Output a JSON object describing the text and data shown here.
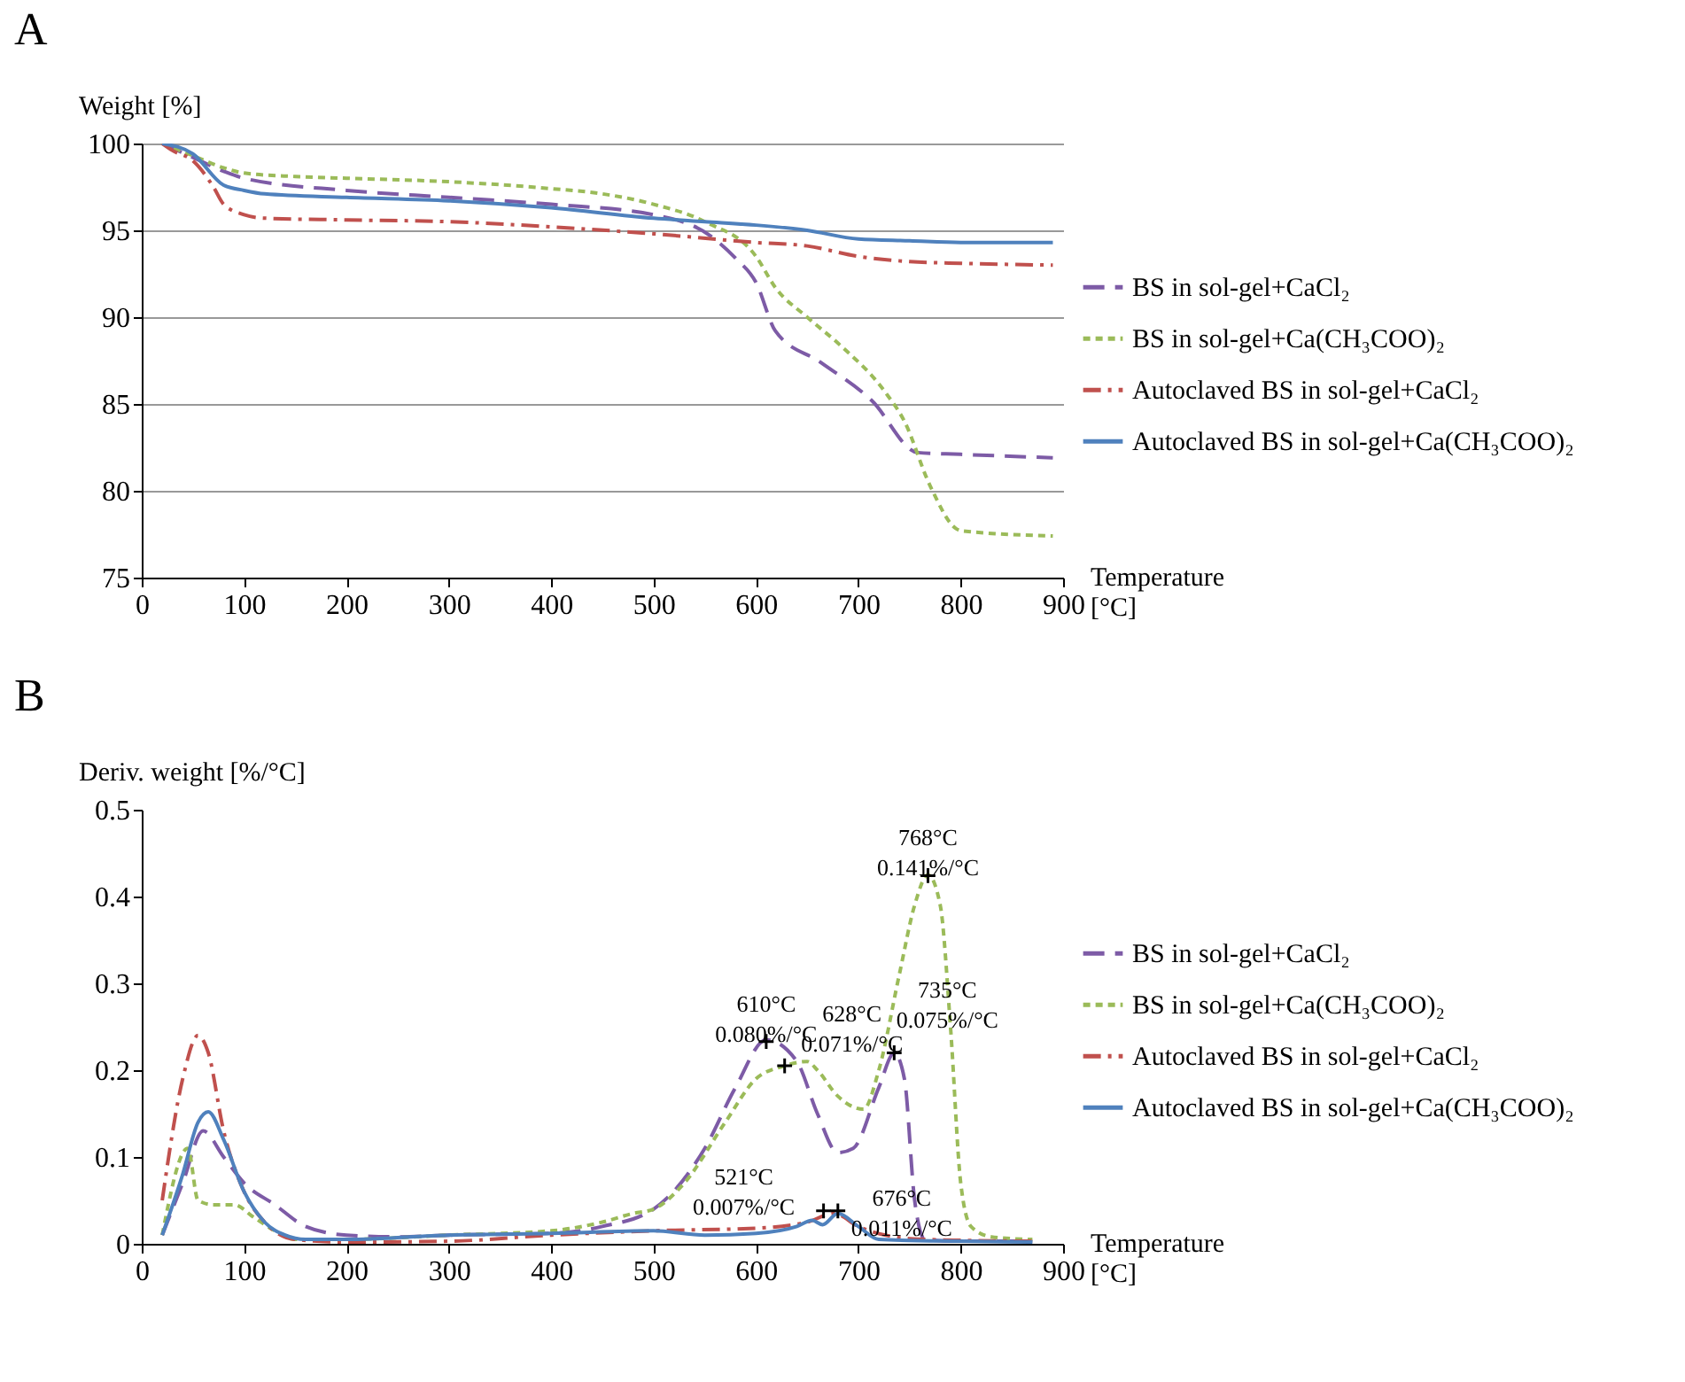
{
  "chart_data": [
    {
      "type": "line",
      "title": "A",
      "ylabel": "Weight [%]",
      "xlabel": "Temperature [°C]",
      "xlim": [
        0,
        900
      ],
      "xticks": [
        0,
        100,
        200,
        300,
        400,
        500,
        600,
        700,
        800,
        900
      ],
      "ylim": [
        75,
        100
      ],
      "yticks": [
        75,
        80,
        85,
        90,
        95,
        100
      ],
      "grid": "y",
      "legend": "right",
      "series": [
        {
          "name": "BS in sol-gel+CaCl₂",
          "color": "#7d5ba6",
          "line_style": "dashed",
          "x": [
            20,
            50,
            80,
            100,
            200,
            300,
            400,
            500,
            555,
            580,
            600,
            619,
            663,
            713,
            758,
            800,
            890
          ],
          "values": [
            100,
            99.2,
            98.4,
            98,
            97.3,
            96.9,
            96.5,
            95.9,
            94.7,
            93.4,
            92.0,
            89.2,
            87.4,
            85.2,
            82.2,
            82.1,
            81.9
          ]
        },
        {
          "name": "BS in sol-gel+Ca(CH₃COO)₂",
          "color": "#9bbb59",
          "line_style": "dotted",
          "x": [
            20,
            50,
            80,
            100,
            150,
            200,
            300,
            400,
            450,
            500,
            550,
            600,
            619,
            650,
            682,
            726,
            745,
            770,
            796,
            800,
            890
          ],
          "values": [
            100,
            99.3,
            98.6,
            98.3,
            98.1,
            98.0,
            97.8,
            97.4,
            97.1,
            96.5,
            95.5,
            93.5,
            91.7,
            90.0,
            88.4,
            85.7,
            84.0,
            80.3,
            77.8,
            77.7,
            77.4
          ]
        },
        {
          "name": "Autoclaved BS in sol-gel+CaCl₂",
          "color": "#c0504d",
          "line_style": "dashdot",
          "x": [
            20,
            30,
            50,
            70,
            80,
            100,
            120,
            200,
            300,
            400,
            500,
            600,
            650,
            700,
            750,
            800,
            890
          ],
          "values": [
            100,
            99.6,
            99,
            97.5,
            96.5,
            95.9,
            95.7,
            95.6,
            95.5,
            95.2,
            94.8,
            94.3,
            94.1,
            93.5,
            93.2,
            93.1,
            93.0
          ]
        },
        {
          "name": "Autoclaved BS in sol-gel+Ca(CH₃COO)₂",
          "color": "#4f81bd",
          "line_style": "solid",
          "x": [
            20,
            50,
            80,
            100,
            120,
            200,
            300,
            400,
            500,
            550,
            600,
            650,
            700,
            750,
            800,
            890
          ],
          "values": [
            100,
            99.4,
            97.6,
            97.3,
            97.1,
            96.9,
            96.7,
            96.3,
            95.7,
            95.5,
            95.3,
            95.0,
            94.5,
            94.4,
            94.3,
            94.3
          ]
        }
      ]
    },
    {
      "type": "line",
      "title": "B",
      "ylabel": "Deriv. weight [%/°C]",
      "xlabel": "Temperature [°C]",
      "xlim": [
        0,
        900
      ],
      "xticks": [
        0,
        100,
        200,
        300,
        400,
        500,
        600,
        700,
        800,
        900
      ],
      "ylim": [
        0,
        0.5
      ],
      "yticks": [
        0,
        0.1,
        0.2,
        0.3,
        0.4,
        0.5
      ],
      "legend": "right",
      "annotations": [
        {
          "text": "610°C\n0.080%/°C",
          "x": 610,
          "y": 0.233
        },
        {
          "text": "628°C\n0.071%/°C",
          "x": 628,
          "y": 0.205
        },
        {
          "text": "735°C\n0.075%/°C",
          "x": 735,
          "y": 0.22
        },
        {
          "text": "768°C\n0.141%/°C",
          "x": 768,
          "y": 0.424
        },
        {
          "text": "521°C\n0.007%/°C",
          "x": 666,
          "y": 0.038
        },
        {
          "text": "676°C\n0.011%/°C",
          "x": 680,
          "y": 0.038
        }
      ],
      "series": [
        {
          "type": "scatter",
          "marker": "cross",
          "color": "#000000",
          "x": [
            610,
            628,
            735,
            768,
            666,
            680
          ],
          "values": [
            0.233,
            0.205,
            0.22,
            0.424,
            0.038,
            0.038
          ]
        },
        {
          "name": "BS in sol-gel+CaCl₂",
          "color": "#7d5ba6",
          "line_style": "dashed",
          "x": [
            20,
            40,
            60,
            80,
            100,
            130,
            160,
            200,
            250,
            300,
            400,
            450,
            500,
            550,
            580,
            610,
            640,
            660,
            680,
            695,
            720,
            735,
            745,
            755,
            765,
            800,
            870
          ],
          "values": [
            0.01,
            0.07,
            0.13,
            0.1,
            0.07,
            0.045,
            0.02,
            0.01,
            0.008,
            0.01,
            0.012,
            0.02,
            0.04,
            0.11,
            0.18,
            0.235,
            0.21,
            0.15,
            0.105,
            0.11,
            0.18,
            0.22,
            0.19,
            0.05,
            0.005,
            0.003,
            0.003
          ]
        },
        {
          "name": "BS in sol-gel+Ca(CH₃COO)₂",
          "color": "#9bbb59",
          "line_style": "dotted",
          "x": [
            20,
            45,
            55,
            70,
            90,
            110,
            130,
            150,
            200,
            300,
            400,
            450,
            480,
            500,
            530,
            570,
            600,
            628,
            650,
            660,
            680,
            705,
            720,
            740,
            755,
            768,
            780,
            790,
            800,
            810,
            830,
            870
          ],
          "values": [
            0.01,
            0.11,
            0.05,
            0.045,
            0.045,
            0.03,
            0.015,
            0.005,
            0.005,
            0.01,
            0.015,
            0.025,
            0.035,
            0.04,
            0.07,
            0.14,
            0.19,
            0.205,
            0.21,
            0.2,
            0.17,
            0.155,
            0.2,
            0.31,
            0.39,
            0.425,
            0.39,
            0.25,
            0.07,
            0.02,
            0.008,
            0.005
          ]
        },
        {
          "name": "Autoclaved BS in sol-gel+CaCl₂",
          "color": "#c0504d",
          "line_style": "dashdot",
          "x": [
            20,
            40,
            55,
            65,
            80,
            100,
            120,
            150,
            200,
            300,
            400,
            500,
            600,
            650,
            676,
            700,
            750,
            800,
            870
          ],
          "values": [
            0.05,
            0.19,
            0.24,
            0.22,
            0.13,
            0.06,
            0.025,
            0.005,
            0.002,
            0.003,
            0.01,
            0.015,
            0.018,
            0.025,
            0.035,
            0.02,
            0.006,
            0.004,
            0.003
          ]
        },
        {
          "name": "Autoclaved BS in sol-gel+Ca(CH₃COO)₂",
          "color": "#4f81bd",
          "line_style": "solid",
          "x": [
            20,
            40,
            55,
            65,
            80,
            100,
            120,
            140,
            160,
            200,
            300,
            400,
            500,
            550,
            600,
            640,
            655,
            665,
            680,
            700,
            720,
            800,
            870
          ],
          "values": [
            0.01,
            0.08,
            0.14,
            0.152,
            0.12,
            0.06,
            0.025,
            0.01,
            0.005,
            0.005,
            0.01,
            0.012,
            0.015,
            0.01,
            0.012,
            0.02,
            0.027,
            0.022,
            0.035,
            0.02,
            0.005,
            0.003,
            0.002
          ]
        }
      ]
    }
  ]
}
